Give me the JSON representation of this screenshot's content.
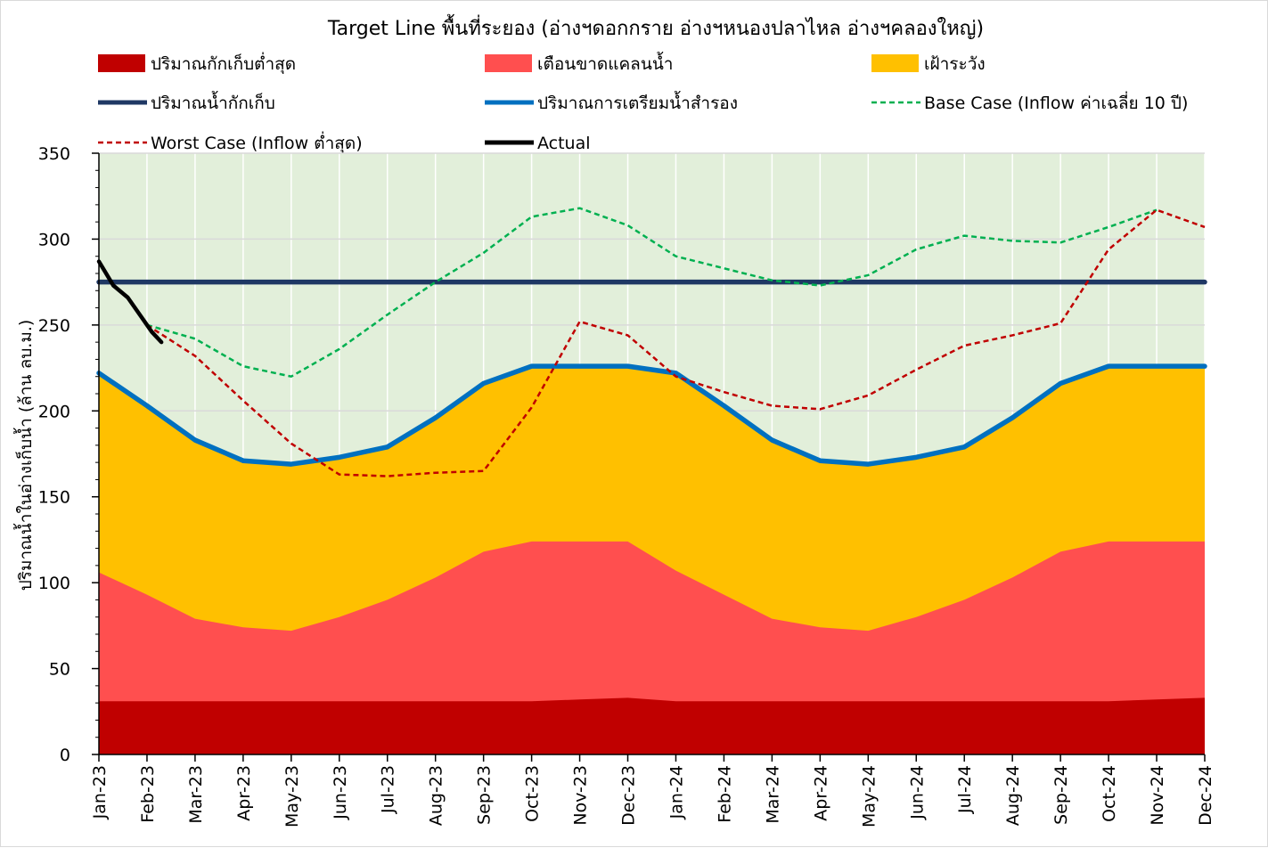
{
  "chart_data": {
    "type": "area",
    "title": "Target Line พื้นที่ระยอง (อ่างฯดอกกราย อ่างฯหนองปลาไหล อ่างฯคลองใหญ่)",
    "xlabel": "",
    "ylabel": "ปริมาณน้ำในอ่างเก็บน้ำ (ล้าน ลบ.ม.)",
    "ylim": [
      0,
      350
    ],
    "yticks": [
      0,
      50,
      100,
      150,
      200,
      250,
      300,
      350
    ],
    "grid": true,
    "legend_position": "top",
    "background_zone_color": "#e2efda",
    "categories": [
      "Jan-23",
      "Feb-23",
      "Mar-23",
      "Apr-23",
      "May-23",
      "Jun-23",
      "Jul-23",
      "Aug-23",
      "Sep-23",
      "Oct-23",
      "Nov-23",
      "Dec-23",
      "Jan-24",
      "Feb-24",
      "Mar-24",
      "Apr-24",
      "May-24",
      "Jun-24",
      "Jul-24",
      "Aug-24",
      "Sep-24",
      "Oct-24",
      "Nov-24",
      "Dec-24"
    ],
    "series": [
      {
        "name": "ปริมาณกักเก็บต่ำสุด",
        "kind": "area",
        "color": "#c00000",
        "values": [
          31,
          31,
          31,
          31,
          31,
          31,
          31,
          31,
          31,
          31,
          32,
          33,
          31,
          31,
          31,
          31,
          31,
          31,
          31,
          31,
          31,
          31,
          32,
          33
        ]
      },
      {
        "name": "เตือนขาดแคลนน้ำ",
        "kind": "area",
        "color": "#ff4f4f",
        "values": [
          106,
          93,
          79,
          74,
          72,
          80,
          90,
          103,
          118,
          124,
          124,
          124,
          107,
          93,
          79,
          74,
          72,
          80,
          90,
          103,
          118,
          124,
          124,
          124
        ]
      },
      {
        "name": "เฝ้าระวัง",
        "kind": "area",
        "color": "#ffc000",
        "values": [
          222,
          203,
          183,
          171,
          169,
          173,
          179,
          196,
          216,
          226,
          226,
          226,
          222,
          203,
          183,
          171,
          169,
          173,
          179,
          196,
          216,
          226,
          226,
          226
        ]
      },
      {
        "name": "ปริมาณน้ำกักเก็บ",
        "kind": "line",
        "color": "#1f3864",
        "dash": "solid",
        "values": [
          275,
          275,
          275,
          275,
          275,
          275,
          275,
          275,
          275,
          275,
          275,
          275,
          275,
          275,
          275,
          275,
          275,
          275,
          275,
          275,
          275,
          275,
          275,
          275
        ]
      },
      {
        "name": "ปริมาณการเตรียมน้ำสำรอง",
        "kind": "line",
        "color": "#0070c0",
        "dash": "solid",
        "values": [
          222,
          203,
          183,
          171,
          169,
          173,
          179,
          196,
          216,
          226,
          226,
          226,
          222,
          203,
          183,
          171,
          169,
          173,
          179,
          196,
          216,
          226,
          226,
          226
        ]
      },
      {
        "name": "Base Case (Inflow ค่าเฉลี่ย 10 ปี)",
        "kind": "line",
        "color": "#00b050",
        "dash": "dashed",
        "values": [
          null,
          250,
          242,
          226,
          220,
          236,
          256,
          275,
          292,
          313,
          318,
          308,
          290,
          283,
          276,
          273,
          279,
          294,
          302,
          299,
          298,
          307,
          317,
          null
        ]
      },
      {
        "name": "Worst Case (Inflow ต่ำสุด)",
        "kind": "line",
        "color": "#c00000",
        "dash": "dashed",
        "values": [
          null,
          250,
          232,
          206,
          181,
          163,
          162,
          164,
          165,
          202,
          252,
          244,
          220,
          211,
          203,
          201,
          209,
          224,
          238,
          244,
          251,
          294,
          317,
          307
        ]
      },
      {
        "name": "Actual",
        "kind": "line",
        "color": "#000000",
        "dash": "solid",
        "x": [
          0,
          0.3,
          0.6,
          0.9,
          1.1,
          1.3
        ],
        "values": [
          287,
          273,
          266,
          254,
          246,
          240
        ]
      }
    ]
  }
}
